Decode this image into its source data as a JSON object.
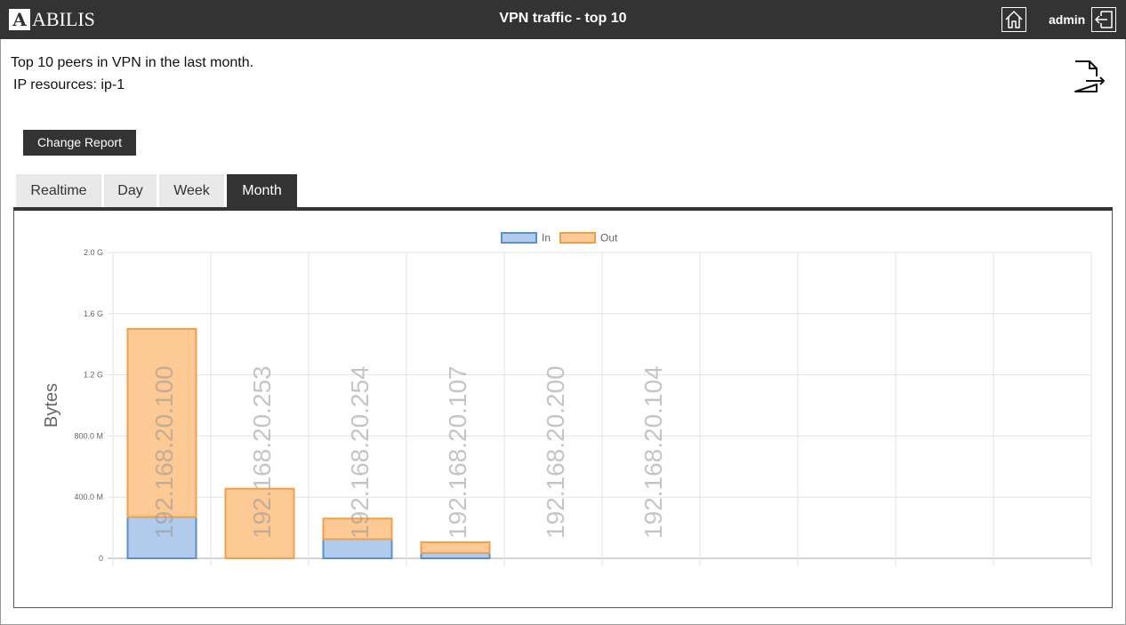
{
  "header": {
    "logo_letter": "A",
    "logo_text": "ABILIS",
    "title": "VPN traffic - top 10",
    "user": "admin",
    "home_icon": "home-icon",
    "logout_icon": "logout-icon"
  },
  "content": {
    "description_line1": "Top 10 peers in VPN in the last month.",
    "description_line2": "IP resources: ip-1",
    "export_icon": "export-document-icon",
    "change_report_label": "Change Report"
  },
  "tabs": [
    {
      "label": "Realtime",
      "active": false
    },
    {
      "label": "Day",
      "active": false
    },
    {
      "label": "Week",
      "active": false
    },
    {
      "label": "Month",
      "active": true
    }
  ],
  "chart_data": {
    "type": "bar",
    "stacked": true,
    "ylabel": "Bytes",
    "ylim": [
      0,
      2000000000
    ],
    "y_ticks": [
      {
        "value": 0,
        "label": "0"
      },
      {
        "value": 400000000,
        "label": "400.0 M"
      },
      {
        "value": 800000000,
        "label": "800.0 M"
      },
      {
        "value": 1200000000,
        "label": "1.2 G"
      },
      {
        "value": 1600000000,
        "label": "1.6 G"
      },
      {
        "value": 2000000000,
        "label": "2.0 G"
      }
    ],
    "categories": [
      "192.168.20.100",
      "192.168.20.253",
      "192.168.20.254",
      "192.168.20.107",
      "192.168.20.200",
      "192.168.20.104",
      "",
      "",
      "",
      ""
    ],
    "series": [
      {
        "name": "In",
        "color": "#b0cbeb",
        "border": "#5b8fd0",
        "values": [
          270000000,
          0,
          125000000,
          35000000,
          0,
          0,
          0,
          0,
          0,
          0
        ]
      },
      {
        "name": "Out",
        "color": "#fdc995",
        "border": "#f0a04a",
        "values": [
          1230000000,
          455000000,
          135000000,
          70000000,
          0,
          0,
          0,
          0,
          0,
          0
        ]
      }
    ],
    "grid": true,
    "legend_position": "top"
  }
}
